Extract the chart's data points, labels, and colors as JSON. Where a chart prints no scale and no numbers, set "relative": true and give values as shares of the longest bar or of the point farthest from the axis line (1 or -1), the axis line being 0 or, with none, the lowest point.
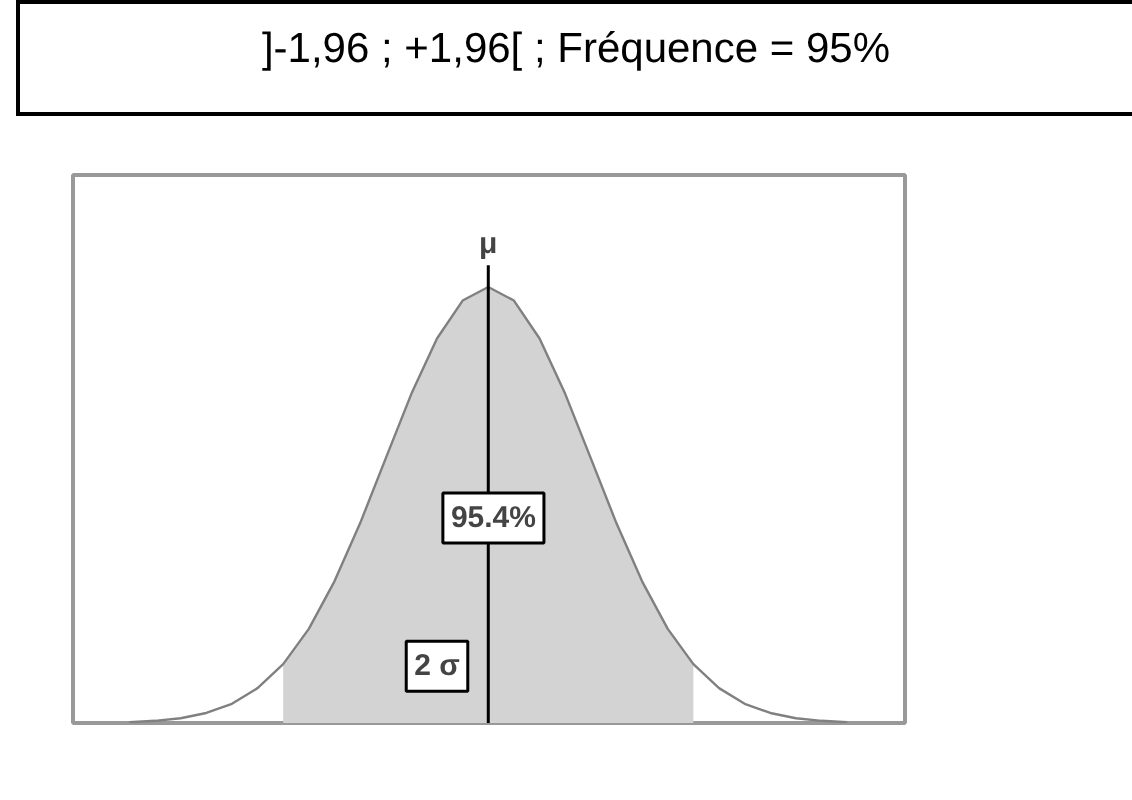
{
  "chart_data": {
    "type": "line",
    "title": "]-1,96 ; +1,96[ ; Fréquence = 95%",
    "relative": true,
    "tick_labels": false,
    "grid": false,
    "categories": [
      null,
      null,
      null,
      null,
      null,
      null,
      null,
      null,
      null,
      null,
      null,
      null,
      null,
      null,
      null,
      null,
      null,
      null,
      null,
      null,
      null,
      null,
      null,
      null,
      null,
      null,
      null,
      null,
      null
    ],
    "series": [
      {
        "type": "area",
        "color": "#d3d3d3",
        "values": [
          null,
          null,
          null,
          null,
          null,
          null,
          0.135,
          0.216,
          0.325,
          0.458,
          0.607,
          0.755,
          0.882,
          0.969,
          1,
          0.969,
          0.882,
          0.755,
          0.607,
          0.458,
          0.325,
          0.216,
          0.135,
          null,
          null,
          null,
          null,
          null,
          null
        ]
      },
      {
        "color": "#808080",
        "values": [
          0.002,
          0.005,
          0.011,
          0.023,
          0.044,
          0.08,
          0.135,
          0.216,
          0.325,
          0.458,
          0.607,
          0.755,
          0.882,
          0.969,
          1,
          0.969,
          0.882,
          0.755,
          0.607,
          0.458,
          0.325,
          0.216,
          0.135,
          0.08,
          0.044,
          0.023,
          0.011,
          0.005,
          0.002
        ]
      }
    ],
    "annotations": [
      "μ",
      "95.4%",
      "2 σ"
    ]
  }
}
